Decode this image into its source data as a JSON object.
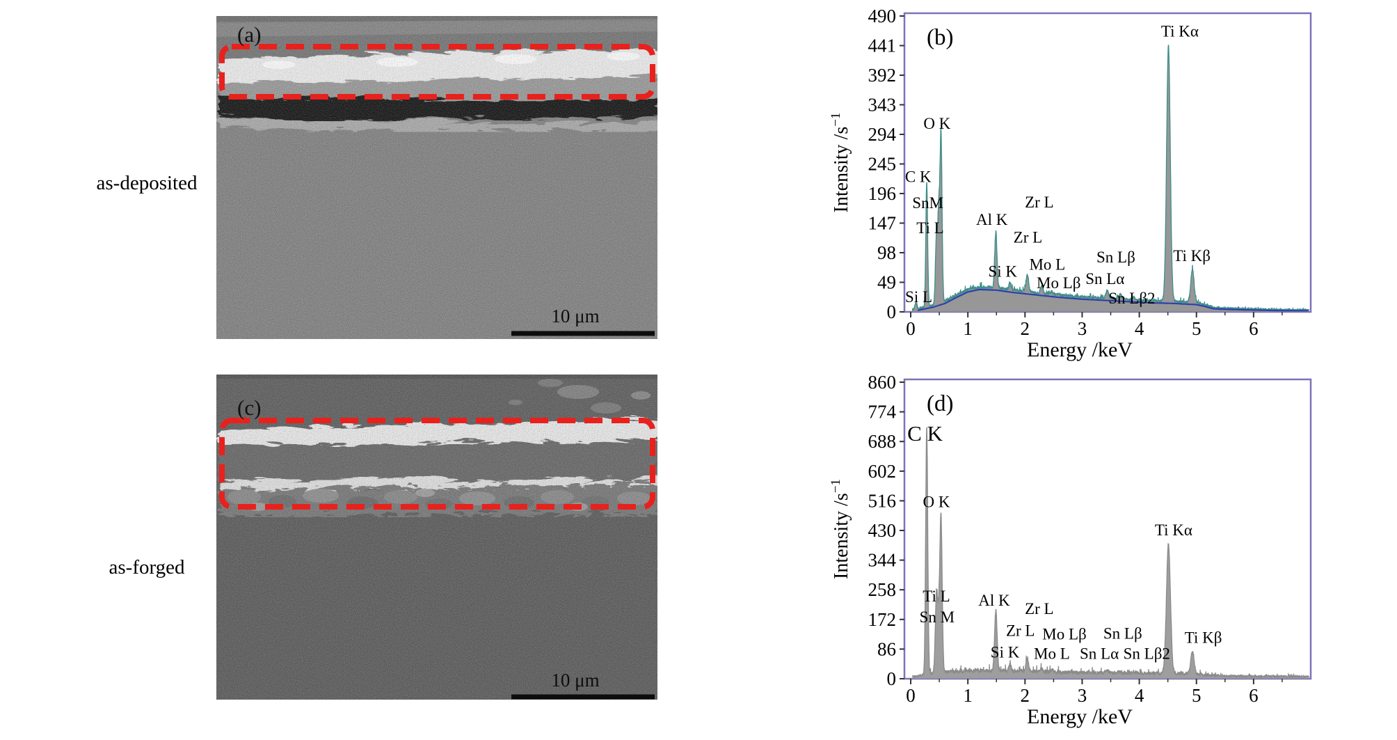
{
  "figure": {
    "panels": {
      "a": {
        "letter": "(a)",
        "side_label": "as-deposited",
        "scalebar": "10 μm"
      },
      "b": {
        "letter": "(b)"
      },
      "c": {
        "letter": "(c)",
        "side_label": "as-forged",
        "scalebar": "10 μm"
      },
      "d": {
        "letter": "(d)"
      }
    },
    "colors": {
      "dashed_box": "#e8211d",
      "chart_border": "#7b74b8",
      "scalebar": "#0d0d0d"
    }
  },
  "chart_data": [
    {
      "id": "b",
      "panel_label": "(b)",
      "type": "area",
      "xlabel": "Energy /keV",
      "ylabel": "Intensity /s⁻¹",
      "ylabel_parts": [
        "Intensity /s",
        "−1"
      ],
      "xlim": [
        0,
        7
      ],
      "ylim": [
        0,
        490
      ],
      "xticks": [
        0,
        1,
        2,
        3,
        4,
        5,
        6
      ],
      "yticks": [
        0,
        49,
        98,
        147,
        196,
        245,
        294,
        343,
        392,
        441,
        490
      ],
      "fill_color": "#8f8f8f",
      "line_color": "#3f8e8a",
      "noise_amp": 7,
      "noise_env": [
        [
          0.05,
          0.4
        ],
        [
          0.5,
          0.9
        ],
        [
          1,
          1
        ],
        [
          3,
          0.9
        ],
        [
          5,
          0.8
        ],
        [
          5.35,
          0.45
        ],
        [
          7,
          0.35
        ]
      ],
      "peaks": [
        {
          "line": "Si L",
          "keV": 0.09,
          "intensity": 12,
          "w": 0.02
        },
        {
          "line": "C K",
          "keV": 0.28,
          "intensity": 212,
          "w": 0.016
        },
        {
          "line": "Ti L",
          "keV": 0.45,
          "intensity": 122,
          "w": 0.018
        },
        {
          "line": "Sn M",
          "keV": 0.49,
          "intensity": 152,
          "w": 0.016
        },
        {
          "line": "O K",
          "keV": 0.53,
          "intensity": 292,
          "w": 0.018
        },
        {
          "line": "Al K",
          "keV": 1.49,
          "intensity": 128,
          "w": 0.02
        },
        {
          "line": "Si K",
          "keV": 1.74,
          "intensity": 44,
          "w": 0.02
        },
        {
          "line": "Zr L",
          "keV": 2.04,
          "intensity": 58,
          "w": 0.022
        },
        {
          "line": "Mo L",
          "keV": 2.29,
          "intensity": 38,
          "w": 0.022
        },
        {
          "line": "Mo Lβ",
          "keV": 2.47,
          "intensity": 27,
          "w": 0.022
        },
        {
          "line": "Sn Lα",
          "keV": 3.44,
          "intensity": 31,
          "w": 0.024
        },
        {
          "line": "Sn Lβ",
          "keV": 3.66,
          "intensity": 25,
          "w": 0.024
        },
        {
          "line": "Sn Lβ2",
          "keV": 3.9,
          "intensity": 16,
          "w": 0.024
        },
        {
          "line": "Ti Kα",
          "keV": 4.51,
          "intensity": 437,
          "w": 0.032
        },
        {
          "line": "Ti Kβ",
          "keV": 4.93,
          "intensity": 68,
          "w": 0.028
        }
      ],
      "peak_labels": [
        {
          "text": "C K",
          "keV": 0.13,
          "intensity": 215
        },
        {
          "text": "O K",
          "keV": 0.46,
          "intensity": 303
        },
        {
          "text": "SnM",
          "keV": 0.3,
          "intensity": 172
        },
        {
          "text": "Ti L",
          "keV": 0.34,
          "intensity": 130
        },
        {
          "text": "Si L",
          "keV": 0.14,
          "intensity": 16
        },
        {
          "text": "Al K",
          "keV": 1.42,
          "intensity": 144
        },
        {
          "text": "Si K",
          "keV": 1.61,
          "intensity": 58
        },
        {
          "text": "Zr L",
          "keV": 2.25,
          "intensity": 173
        },
        {
          "text": "Zr L",
          "keV": 2.05,
          "intensity": 115
        },
        {
          "text": "Mo L",
          "keV": 2.39,
          "intensity": 70
        },
        {
          "text": "Mo Lβ",
          "keV": 2.59,
          "intensity": 39
        },
        {
          "text": "Sn Lβ",
          "keV": 3.59,
          "intensity": 82
        },
        {
          "text": "Sn Lα",
          "keV": 3.4,
          "intensity": 46
        },
        {
          "text": "Sn Lβ2",
          "keV": 3.87,
          "intensity": 14
        },
        {
          "text": "Ti Kα",
          "keV": 4.71,
          "intensity": 456
        },
        {
          "text": "Ti Kβ",
          "keV": 4.92,
          "intensity": 84
        }
      ],
      "background_curve": {
        "draw": true,
        "color": "#2f3fae",
        "points": [
          [
            0.05,
            1
          ],
          [
            0.2,
            4
          ],
          [
            0.4,
            8
          ],
          [
            0.6,
            14
          ],
          [
            0.8,
            24
          ],
          [
            1.0,
            33
          ],
          [
            1.2,
            37
          ],
          [
            1.5,
            36
          ],
          [
            1.8,
            32
          ],
          [
            2.2,
            28
          ],
          [
            2.6,
            24
          ],
          [
            3.0,
            21
          ],
          [
            3.4,
            19
          ],
          [
            3.8,
            17
          ],
          [
            4.2,
            15
          ],
          [
            4.6,
            14
          ],
          [
            5.0,
            12
          ],
          [
            5.15,
            9
          ],
          [
            5.3,
            5
          ],
          [
            5.6,
            4
          ],
          [
            6.0,
            3
          ],
          [
            6.5,
            2
          ],
          [
            7.0,
            2
          ]
        ]
      }
    },
    {
      "id": "d",
      "panel_label": "(d)",
      "type": "area",
      "xlabel": "Energy /keV",
      "ylabel": "Intensity /s⁻¹",
      "ylabel_parts": [
        "Intensity /s",
        "−1"
      ],
      "xlim": [
        0,
        7
      ],
      "ylim": [
        0,
        860
      ],
      "xticks": [
        0,
        1,
        2,
        3,
        4,
        5,
        6
      ],
      "yticks": [
        0,
        86,
        172,
        258,
        344,
        430,
        516,
        602,
        688,
        774,
        860
      ],
      "fill_color": "#979797",
      "line_color": "#8a8a8a",
      "noise_amp": 15,
      "noise_env": [
        [
          0.05,
          0.5
        ],
        [
          0.5,
          1
        ],
        [
          2,
          1
        ],
        [
          4,
          0.9
        ],
        [
          5.1,
          0.8
        ],
        [
          5.5,
          0.45
        ],
        [
          7,
          0.4
        ]
      ],
      "peaks": [
        {
          "line": "C K",
          "keV": 0.28,
          "intensity": 724,
          "w": 0.018
        },
        {
          "line": "Ti L",
          "keV": 0.45,
          "intensity": 235,
          "w": 0.02
        },
        {
          "line": "Sn M",
          "keV": 0.49,
          "intensity": 140,
          "w": 0.018
        },
        {
          "line": "O K",
          "keV": 0.53,
          "intensity": 462,
          "w": 0.02
        },
        {
          "line": "Al K",
          "keV": 1.49,
          "intensity": 190,
          "w": 0.022
        },
        {
          "line": "Si K",
          "keV": 1.74,
          "intensity": 34,
          "w": 0.02
        },
        {
          "line": "Zr L",
          "keV": 2.04,
          "intensity": 52,
          "w": 0.022
        },
        {
          "line": "Mo L",
          "keV": 2.29,
          "intensity": 20,
          "w": 0.022
        },
        {
          "line": "Mo Lβ",
          "keV": 2.47,
          "intensity": 16,
          "w": 0.022
        },
        {
          "line": "Sn Lα",
          "keV": 3.44,
          "intensity": 14,
          "w": 0.024
        },
        {
          "line": "Sn Lβ",
          "keV": 3.66,
          "intensity": 12,
          "w": 0.024
        },
        {
          "line": "Sn Lβ2",
          "keV": 3.9,
          "intensity": 10,
          "w": 0.024
        },
        {
          "line": "Ti Kα",
          "keV": 4.51,
          "intensity": 382,
          "w": 0.035
        },
        {
          "line": "Ti Kβ",
          "keV": 4.93,
          "intensity": 70,
          "w": 0.03
        }
      ],
      "peak_labels": [
        {
          "text": "C K",
          "keV": 0.25,
          "intensity": 690,
          "size": 31
        },
        {
          "text": "O K",
          "keV": 0.45,
          "intensity": 498
        },
        {
          "text": "Ti L",
          "keV": 0.45,
          "intensity": 224
        },
        {
          "text": "Sn M",
          "keV": 0.46,
          "intensity": 164
        },
        {
          "text": "Al K",
          "keV": 1.46,
          "intensity": 212
        },
        {
          "text": "Zr L",
          "keV": 2.25,
          "intensity": 188
        },
        {
          "text": "Zr L",
          "keV": 1.92,
          "intensity": 124
        },
        {
          "text": "Si K",
          "keV": 1.65,
          "intensity": 62
        },
        {
          "text": "Mo Lβ",
          "keV": 2.69,
          "intensity": 114
        },
        {
          "text": "Mo L",
          "keV": 2.47,
          "intensity": 58
        },
        {
          "text": "Sn Lβ",
          "keV": 3.71,
          "intensity": 116
        },
        {
          "text": "Sn Lα",
          "keV": 3.3,
          "intensity": 58
        },
        {
          "text": "Sn Lβ2",
          "keV": 4.13,
          "intensity": 58
        },
        {
          "text": "Ti Kα",
          "keV": 4.6,
          "intensity": 416
        },
        {
          "text": "Ti Kβ",
          "keV": 5.12,
          "intensity": 104
        }
      ],
      "background_curve": {
        "draw": false,
        "color": "#2f3fae",
        "points": [
          [
            0.05,
            2
          ],
          [
            0.3,
            6
          ],
          [
            0.8,
            12
          ],
          [
            1.2,
            14
          ],
          [
            2,
            12
          ],
          [
            3,
            9
          ],
          [
            4,
            8
          ],
          [
            4.8,
            7
          ],
          [
            5.2,
            4
          ],
          [
            6,
            3
          ],
          [
            7,
            3
          ]
        ]
      }
    }
  ]
}
